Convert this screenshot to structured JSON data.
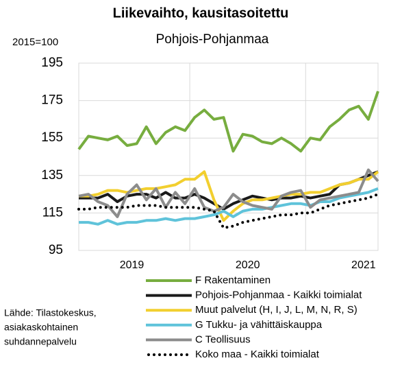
{
  "chart_data": {
    "type": "line",
    "title": "Liikevaihto, kausitasoitettu",
    "subtitle": "Pohjois-Pohjanmaa",
    "y_label": "2015=100",
    "source": [
      "Lähde: Tilastokeskus,",
      "asiakaskohtainen",
      "suhdannepalvelu"
    ],
    "categories": [
      null,
      null,
      null,
      null,
      null,
      "2019",
      null,
      null,
      null,
      null,
      null,
      null,
      null,
      null,
      null,
      null,
      null,
      "2020",
      null,
      null,
      null,
      null,
      null,
      null,
      null,
      null,
      null,
      null,
      null,
      "2021",
      null,
      null
    ],
    "ylim": [
      95,
      195
    ],
    "yticks": [
      95,
      115,
      135,
      155,
      175,
      195
    ],
    "grid": true,
    "legend": "bottom",
    "series": [
      {
        "name": "F Rakentaminen",
        "color": "#77ad3f",
        "values": [
          149,
          156,
          155,
          154,
          156,
          151,
          152,
          161,
          152,
          158,
          161,
          159,
          166,
          170,
          165,
          166,
          148,
          157,
          156,
          153,
          152,
          155,
          152,
          148,
          155,
          154,
          161,
          165,
          170,
          172,
          165,
          180
        ]
      },
      {
        "name": "Pohjois-Pohjanmaa - Kaikki toimialat",
        "color": "#1a1a1a",
        "values": [
          123,
          123,
          123,
          125,
          121,
          124,
          125,
          125,
          123,
          126,
          123,
          123,
          125,
          123,
          120,
          117,
          120,
          122,
          124,
          123,
          122,
          123,
          123,
          124,
          123,
          124,
          125,
          130,
          131,
          133,
          135,
          137
        ]
      },
      {
        "name": "Muut palvelut (H, I, J, L, M, N, R, S)",
        "color": "#f2cf2f",
        "values": [
          124,
          124,
          125,
          127,
          127,
          126,
          127,
          128,
          128,
          129,
          130,
          133,
          133,
          137,
          122,
          111,
          116,
          120,
          122,
          122,
          123,
          124,
          125,
          125,
          126,
          126,
          128,
          130,
          131,
          133,
          133,
          137
        ]
      },
      {
        "name": "G Tukku- ja vähittäiskauppa",
        "color": "#5fc3da",
        "values": [
          110,
          110,
          109,
          111,
          109,
          110,
          110,
          111,
          111,
          112,
          111,
          112,
          112,
          113,
          114,
          116,
          113,
          116,
          117,
          117,
          118,
          119,
          120,
          120,
          119,
          121,
          121,
          123,
          124,
          125,
          126,
          128
        ]
      },
      {
        "name": "C Teollisuus",
        "color": "#8c8c8c",
        "values": [
          124,
          125,
          121,
          119,
          113,
          125,
          130,
          122,
          128,
          118,
          126,
          120,
          128,
          118,
          116,
          118,
          125,
          121,
          119,
          118,
          117,
          124,
          126,
          127,
          118,
          122,
          123,
          124,
          125,
          126,
          138,
          132
        ]
      },
      {
        "name": "Koko maa - Kaikki toimialat",
        "color": "#000000",
        "dotted": true,
        "values": [
          117,
          117,
          118,
          118,
          118,
          118,
          119,
          119,
          119,
          118,
          118,
          118,
          118,
          117,
          116,
          107,
          108,
          110,
          111,
          112,
          113,
          114,
          114,
          115,
          115,
          117,
          119,
          120,
          121,
          122,
          123,
          125
        ]
      }
    ]
  }
}
